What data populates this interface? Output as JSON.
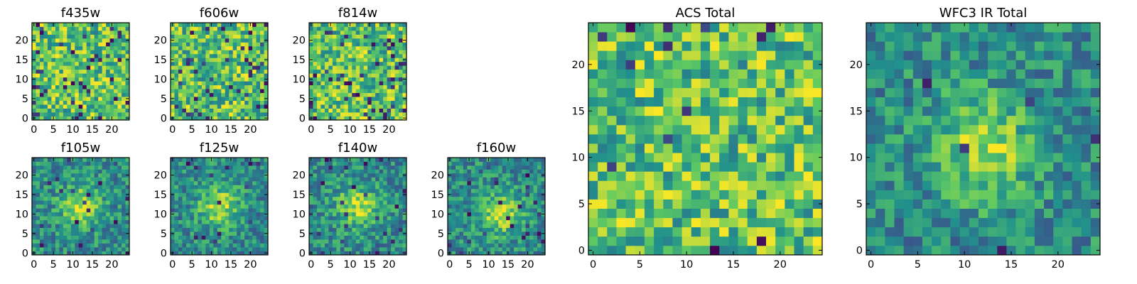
{
  "figure": {
    "colormap": "viridis",
    "colors": [
      "#440154",
      "#3b528b",
      "#21918c",
      "#5ec962",
      "#fde725"
    ],
    "axis_color": "#000000",
    "background": "#ffffff"
  },
  "chart_data": [
    {
      "type": "heatmap",
      "title": "f435w",
      "grid": "25x25",
      "xlim": [
        -0.5,
        24.5
      ],
      "ylim": [
        -0.5,
        24.5
      ],
      "xticks": [
        0,
        5,
        10,
        15,
        20
      ],
      "yticks": [
        0,
        5,
        10,
        15,
        20
      ],
      "pattern": "noise",
      "seed": 11,
      "dark_fraction": 0.06
    },
    {
      "type": "heatmap",
      "title": "f606w",
      "grid": "25x25",
      "xlim": [
        -0.5,
        24.5
      ],
      "ylim": [
        -0.5,
        24.5
      ],
      "xticks": [
        0,
        5,
        10,
        15,
        20
      ],
      "yticks": [
        0,
        5,
        10,
        15,
        20
      ],
      "pattern": "noise",
      "seed": 23,
      "dark_fraction": 0.06
    },
    {
      "type": "heatmap",
      "title": "f814w",
      "grid": "25x25",
      "xlim": [
        -0.5,
        24.5
      ],
      "ylim": [
        -0.5,
        24.5
      ],
      "xticks": [
        0,
        5,
        10,
        15,
        20
      ],
      "yticks": [
        0,
        5,
        10,
        15,
        20
      ],
      "pattern": "noise",
      "seed": 37,
      "dark_fraction": 0.07
    },
    {
      "type": "heatmap",
      "title": "f105w",
      "grid": "25x25",
      "xlim": [
        -0.5,
        24.5
      ],
      "ylim": [
        -0.5,
        24.5
      ],
      "xticks": [
        0,
        5,
        10,
        15,
        20
      ],
      "yticks": [
        0,
        5,
        10,
        15,
        20
      ],
      "pattern": "blob",
      "center": [
        12,
        12
      ],
      "seed": 41,
      "dark_fraction": 0.03
    },
    {
      "type": "heatmap",
      "title": "f125w",
      "grid": "25x25",
      "xlim": [
        -0.5,
        24.5
      ],
      "ylim": [
        -0.5,
        24.5
      ],
      "xticks": [
        0,
        5,
        10,
        15,
        20
      ],
      "yticks": [
        0,
        5,
        10,
        15,
        20
      ],
      "pattern": "blob",
      "center": [
        12,
        12
      ],
      "seed": 53,
      "dark_fraction": 0.03
    },
    {
      "type": "heatmap",
      "title": "f140w",
      "grid": "25x25",
      "xlim": [
        -0.5,
        24.5
      ],
      "ylim": [
        -0.5,
        24.5
      ],
      "xticks": [
        0,
        5,
        10,
        15,
        20
      ],
      "yticks": [
        0,
        5,
        10,
        15,
        20
      ],
      "pattern": "blob",
      "center": [
        12,
        12
      ],
      "seed": 67,
      "dark_fraction": 0.03
    },
    {
      "type": "heatmap",
      "title": "f160w",
      "grid": "25x25",
      "xlim": [
        -0.5,
        24.5
      ],
      "ylim": [
        -0.5,
        24.5
      ],
      "xticks": [
        0,
        5,
        10,
        15,
        20
      ],
      "yticks": [
        0,
        5,
        10,
        15,
        20
      ],
      "pattern": "blob",
      "center": [
        13,
        10
      ],
      "seed": 79,
      "dark_fraction": 0.04
    },
    {
      "type": "heatmap",
      "title": "ACS Total",
      "grid": "25x25",
      "xlim": [
        -0.5,
        24.5
      ],
      "ylim": [
        -0.5,
        24.5
      ],
      "xticks": [
        0,
        5,
        10,
        15,
        20
      ],
      "yticks": [
        0,
        5,
        10,
        15,
        20
      ],
      "pattern": "noise",
      "seed": 97,
      "dark_fraction": 0.03
    },
    {
      "type": "heatmap",
      "title": "WFC3 IR Total",
      "grid": "25x25",
      "xlim": [
        -0.5,
        24.5
      ],
      "ylim": [
        -0.5,
        24.5
      ],
      "xticks": [
        0,
        5,
        10,
        15,
        20
      ],
      "yticks": [
        0,
        5,
        10,
        15,
        20
      ],
      "pattern": "blob",
      "center": [
        12,
        11
      ],
      "seed": 131,
      "dark_fraction": 0.015
    }
  ]
}
